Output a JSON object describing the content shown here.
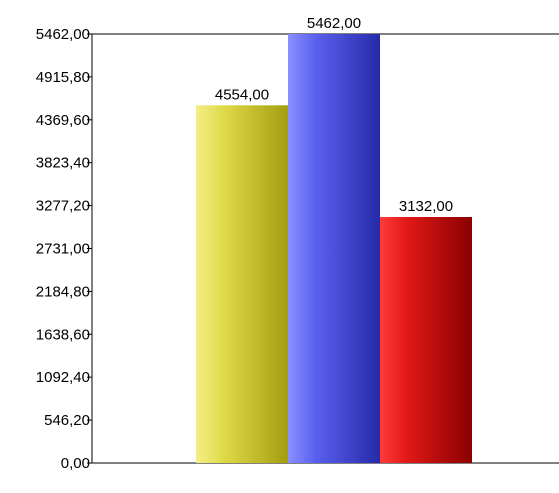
{
  "chart_data": {
    "type": "bar",
    "categories": [
      ""
    ],
    "series": [
      {
        "values": [
          4554.0
        ],
        "color": "#b3b000"
      },
      {
        "values": [
          5462.0
        ],
        "color": "#3a40cc"
      },
      {
        "values": [
          3132.0
        ],
        "color": "#c00000"
      }
    ],
    "data_labels": [
      "4554,00",
      "5462,00",
      "3132,00"
    ],
    "ylim": [
      0,
      5462
    ],
    "y_ticks": [
      0,
      546.2,
      1092.4,
      1638.6,
      2184.8,
      2731.0,
      3277.2,
      3823.4,
      4369.6,
      4915.8,
      5462.0
    ],
    "y_tick_labels": [
      "0,00",
      "546,20",
      "1092,40",
      "1638,60",
      "2184,80",
      "2731,00",
      "3277,20",
      "3823,40",
      "4369,60",
      "4915,80",
      "5462,00"
    ],
    "title": "",
    "xlabel": "",
    "ylabel": "",
    "grid": false,
    "legend": "none"
  }
}
